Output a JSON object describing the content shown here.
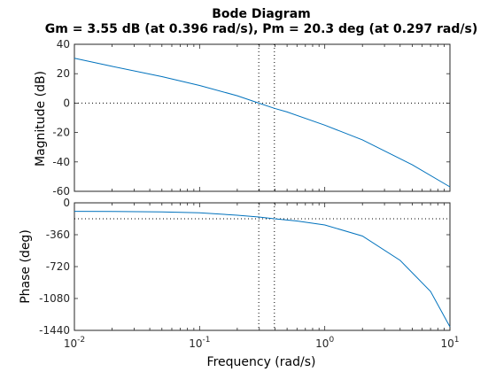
{
  "chart_data": {
    "type": "line",
    "title": "Bode Diagram",
    "subtitle": "Gm = 3.55 dB (at 0.396 rad/s),  Pm = 20.3 deg (at 0.297 rad/s)",
    "xlabel": "Frequency  (rad/s)",
    "xscale": "log",
    "xlim": [
      0.01,
      10
    ],
    "x_ticks": [
      {
        "value": 0.01,
        "base": "10",
        "exp": "-2"
      },
      {
        "value": 0.1,
        "base": "10",
        "exp": "-1"
      },
      {
        "value": 1,
        "base": "10",
        "exp": "0"
      },
      {
        "value": 10,
        "base": "10",
        "exp": "1"
      }
    ],
    "panels": [
      {
        "name": "magnitude",
        "ylabel": "Magnitude (dB)",
        "ylim": [
          -60,
          40
        ],
        "y_ticks": [
          "40",
          "20",
          "0",
          "-20",
          "-40",
          "-60"
        ],
        "y_tick_values": [
          40,
          20,
          0,
          -20,
          -40,
          -60
        ],
        "reference_y": 0,
        "marker_freqs": [
          0.297,
          0.396
        ],
        "x": [
          0.01,
          0.02,
          0.05,
          0.1,
          0.2,
          0.297,
          0.396,
          0.5,
          1,
          2,
          5,
          10
        ],
        "y": [
          30.5,
          25,
          18,
          12,
          5,
          0,
          -3.55,
          -6,
          -15,
          -25,
          -42,
          -57
        ]
      },
      {
        "name": "phase",
        "ylabel": "Phase (deg)",
        "ylim": [
          -1440,
          0
        ],
        "y_ticks": [
          "0",
          "-360",
          "-720",
          "-1080",
          "-1440"
        ],
        "y_tick_values": [
          0,
          -360,
          -720,
          -1080,
          -1440
        ],
        "reference_y": -180,
        "marker_freqs": [
          0.297,
          0.396
        ],
        "x": [
          0.01,
          0.02,
          0.05,
          0.1,
          0.2,
          0.297,
          0.396,
          0.6,
          1,
          2,
          4,
          7,
          10
        ],
        "y": [
          -96,
          -98,
          -103,
          -113,
          -140,
          -160,
          -180,
          -205,
          -250,
          -375,
          -650,
          -1000,
          -1400
        ]
      }
    ]
  }
}
